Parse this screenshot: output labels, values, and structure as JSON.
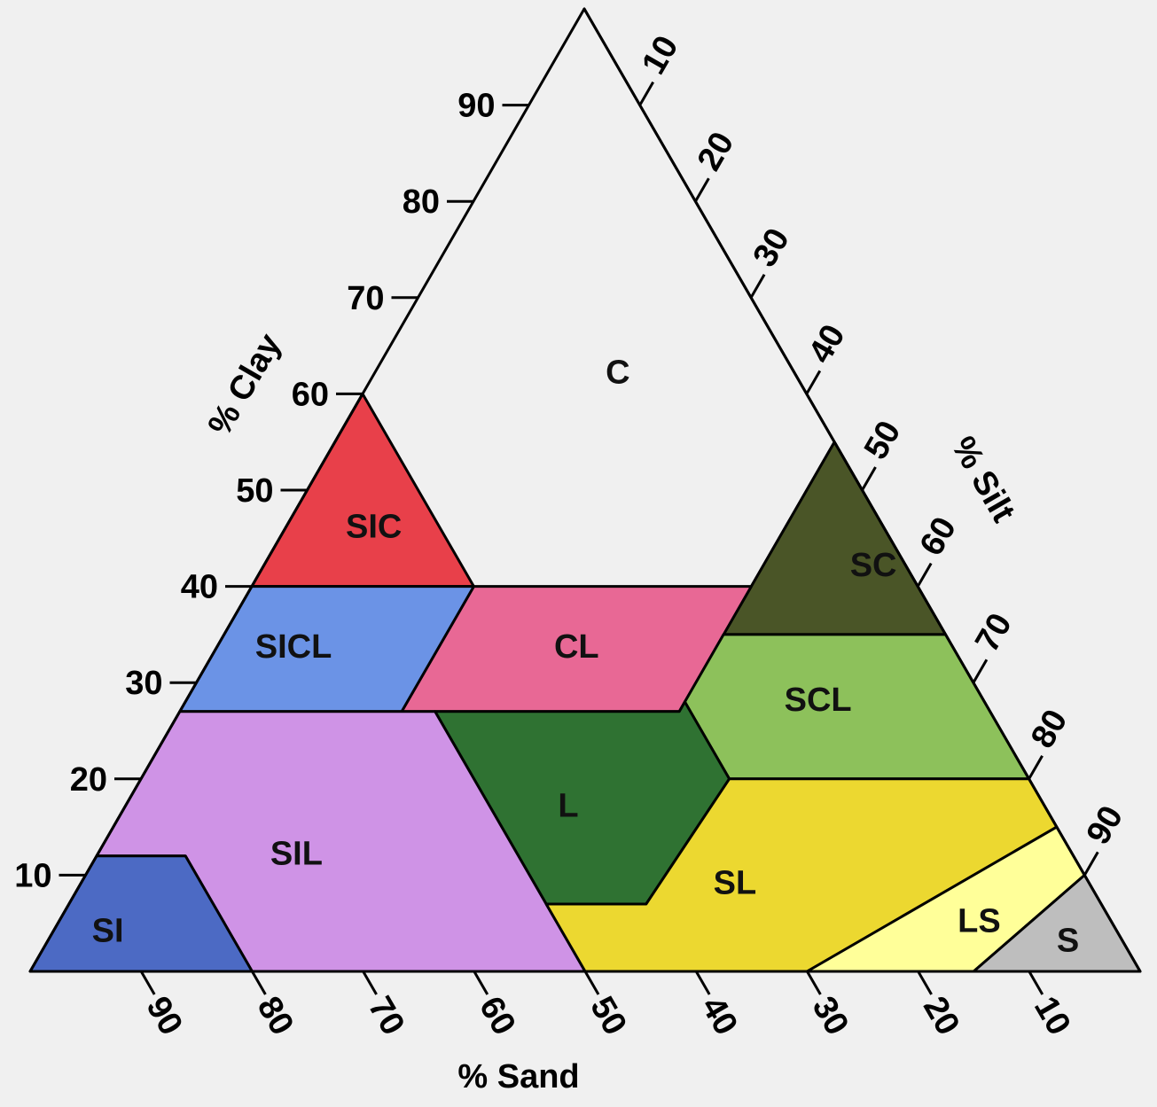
{
  "chart_data": {
    "type": "ternary",
    "axes": {
      "clay": {
        "title": "% Clay",
        "ticks": [
          "10",
          "20",
          "30",
          "40",
          "50",
          "60",
          "70",
          "80",
          "90"
        ]
      },
      "silt": {
        "title": "% Silt",
        "ticks": [
          "10",
          "20",
          "30",
          "40",
          "50",
          "60",
          "70",
          "80",
          "90"
        ]
      },
      "sand": {
        "title": "% Sand",
        "ticks": [
          "90",
          "80",
          "70",
          "60",
          "50",
          "40",
          "30",
          "20",
          "10"
        ]
      }
    },
    "regions": [
      {
        "label": "C",
        "color": "#ae4830",
        "points": [
          [
            100,
            0
          ],
          [
            55,
            45
          ],
          [
            40,
            45
          ],
          [
            40,
            60
          ]
        ],
        "label_at": [
          0.62,
          0.22
        ]
      },
      {
        "label": "SIC",
        "color": "#e8404a",
        "points": [
          [
            60,
            0
          ],
          [
            40,
            20
          ],
          [
            40,
            0
          ]
        ],
        "label_at": [
          0.46,
          0.08
        ]
      },
      {
        "label": "SC",
        "color": "#4a5527",
        "points": [
          [
            55,
            45
          ],
          [
            35,
            65
          ],
          [
            35,
            45
          ]
        ],
        "label_at": [
          0.42,
          0.55
        ]
      },
      {
        "label": "CL",
        "color": "#e86895",
        "points": [
          [
            40,
            45
          ],
          [
            40,
            20
          ],
          [
            27,
            20
          ],
          [
            27,
            45
          ]
        ],
        "label_at": [
          0.335,
          0.325
        ]
      },
      {
        "label": "SICL",
        "color": "#6b93e6",
        "points": [
          [
            40,
            20
          ],
          [
            40,
            0
          ],
          [
            27,
            0
          ],
          [
            27,
            20
          ]
        ],
        "label_at": [
          0.335,
          0.07
        ]
      },
      {
        "label": "SCL",
        "color": "#8dc15b",
        "points": [
          [
            35,
            65
          ],
          [
            35,
            45
          ],
          [
            28,
            45
          ],
          [
            20,
            53
          ],
          [
            20,
            80
          ]
        ],
        "label_at": [
          0.28,
          0.57
        ]
      },
      {
        "label": "L",
        "color": "#2f7232",
        "points": [
          [
            28,
            45
          ],
          [
            27,
            45
          ],
          [
            27,
            23
          ],
          [
            7,
            43
          ],
          [
            7,
            52
          ],
          [
            20,
            53
          ]
        ],
        "label_at": [
          0.17,
          0.4
        ]
      },
      {
        "label": "SIL",
        "color": "#cf93e6",
        "points": [
          [
            27,
            23
          ],
          [
            27,
            0
          ],
          [
            12,
            0
          ],
          [
            12,
            8
          ],
          [
            0,
            20
          ],
          [
            0,
            50
          ],
          [
            7,
            43
          ]
        ],
        "label_at": [
          0.12,
          0.18
        ]
      },
      {
        "label": "SI",
        "color": "#4c6ac4",
        "points": [
          [
            12,
            0
          ],
          [
            0,
            0
          ],
          [
            0,
            20
          ],
          [
            12,
            8
          ]
        ],
        "label_at": [
          0.04,
          0.05
        ]
      },
      {
        "label": "SL",
        "color": "#ecd830",
        "points": [
          [
            20,
            80
          ],
          [
            20,
            53
          ],
          [
            7,
            52
          ],
          [
            7,
            43
          ],
          [
            0,
            50
          ],
          [
            0,
            70
          ],
          [
            15,
            85
          ]
        ],
        "label_at": [
          0.09,
          0.59
        ]
      },
      {
        "label": "LS",
        "color": "#ffff99",
        "points": [
          [
            15,
            85
          ],
          [
            0,
            70
          ],
          [
            0,
            85
          ],
          [
            10,
            90
          ]
        ],
        "label_at": [
          0.05,
          0.83
        ]
      },
      {
        "label": "S",
        "color": "#bebebe",
        "points": [
          [
            10,
            90
          ],
          [
            0,
            85
          ],
          [
            0,
            100
          ]
        ],
        "label_at": [
          0.03,
          0.92
        ]
      }
    ]
  }
}
